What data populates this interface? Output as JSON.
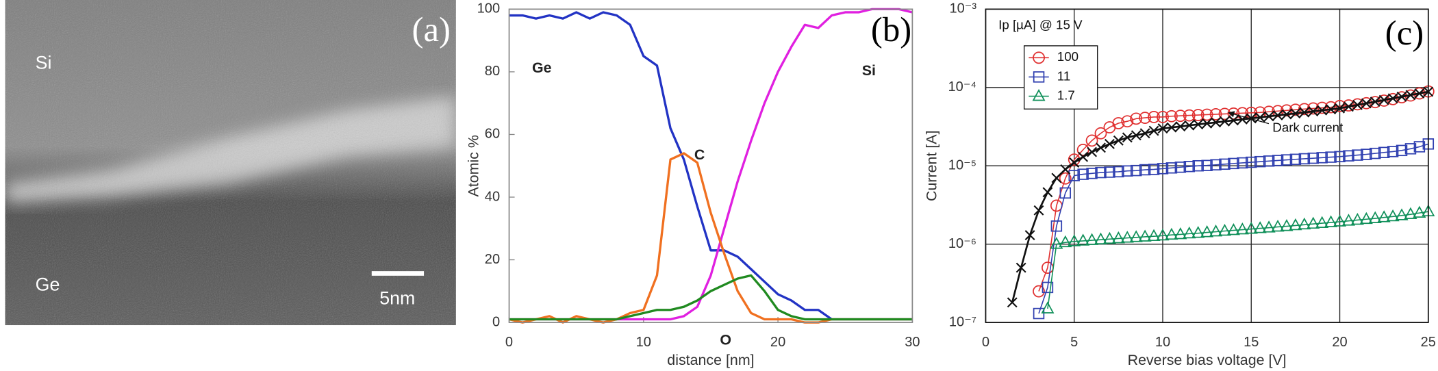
{
  "image_panel": {
    "panel_label": "(a)",
    "labels": [
      "Si",
      "Ge"
    ],
    "scale_bar": "5nm"
  },
  "chart_data": [
    {
      "type": "line",
      "panel_label": "(b)",
      "xlabel": "distance [nm]",
      "ylabel": "Atomic %",
      "xlim": [
        0,
        30
      ],
      "xticks": [
        0,
        10,
        20,
        30
      ],
      "ylim": [
        0,
        100
      ],
      "yticks": [
        0,
        20,
        40,
        60,
        80,
        100
      ],
      "grid": false,
      "legend": "inline",
      "x": [
        0,
        1,
        2,
        3,
        4,
        5,
        6,
        7,
        8,
        9,
        10,
        11,
        12,
        13,
        14,
        15,
        16,
        17,
        18,
        19,
        20,
        21,
        22,
        23,
        24,
        25,
        26,
        27,
        28,
        29,
        30
      ],
      "series": [
        {
          "name": "Ge",
          "color": "#2233c4",
          "values": [
            98,
            98,
            97,
            98,
            97,
            99,
            97,
            99,
            98,
            95,
            85,
            82,
            62,
            52,
            37,
            23,
            23,
            21,
            17,
            13,
            9,
            7,
            4,
            4,
            1,
            1,
            1,
            1,
            1,
            1,
            1
          ]
        },
        {
          "name": "Si",
          "color": "#e020e0",
          "values": [
            1,
            1,
            1,
            1,
            1,
            1,
            1,
            1,
            1,
            1,
            1,
            1,
            1,
            2,
            5,
            15,
            30,
            45,
            58,
            70,
            80,
            88,
            95,
            94,
            98,
            99,
            99,
            100,
            100,
            100,
            99
          ]
        },
        {
          "name": "C",
          "color": "#f07020",
          "values": [
            1,
            0,
            1,
            2,
            0,
            2,
            1,
            0,
            1,
            3,
            4,
            15,
            52,
            54,
            51,
            35,
            22,
            10,
            3,
            1,
            1,
            1,
            0,
            0,
            1,
            1,
            1,
            1,
            1,
            1,
            1
          ]
        },
        {
          "name": "O",
          "color": "#208a20",
          "values": [
            1,
            1,
            1,
            1,
            1,
            1,
            1,
            1,
            1,
            2,
            3,
            4,
            4,
            5,
            7,
            10,
            12,
            14,
            15,
            10,
            4,
            2,
            1,
            1,
            1,
            1,
            1,
            1,
            1,
            1,
            1
          ]
        }
      ]
    },
    {
      "type": "line",
      "panel_label": "(c)",
      "xlabel": "Reverse bias voltage [V]",
      "ylabel": "Current [A]",
      "xlim": [
        0,
        25
      ],
      "xticks": [
        0,
        5,
        10,
        15,
        20,
        25
      ],
      "log_y": true,
      "ylim": [
        1e-07,
        0.001
      ],
      "yticks": [
        {
          "value": 1e-07,
          "label": "10⁻⁷"
        },
        {
          "value": 1e-06,
          "label": "10⁻⁶"
        },
        {
          "value": 1e-05,
          "label": "10⁻⁵"
        },
        {
          "value": 0.0001,
          "label": "10⁻⁴"
        },
        {
          "value": 0.001,
          "label": "10⁻³"
        }
      ],
      "grid": true,
      "legend": "upper left",
      "legend_title": "Ip [µA] @ 15 V",
      "annotation": "Dark current",
      "series": [
        {
          "name": "100",
          "color": "#e03030",
          "marker": "circle",
          "x": [
            3,
            3.5,
            4,
            4.5,
            5,
            5.5,
            6,
            6.5,
            7,
            7.5,
            8,
            8.5,
            9,
            9.5,
            10,
            10.5,
            11,
            11.5,
            12,
            12.5,
            13,
            13.5,
            14,
            14.5,
            15,
            15.5,
            16,
            16.5,
            17,
            17.5,
            18,
            18.5,
            19,
            19.5,
            20,
            20.5,
            21,
            21.5,
            22,
            22.5,
            23,
            23.5,
            24,
            24.5,
            25
          ],
          "values": [
            2.5e-07,
            5e-07,
            3.1e-06,
            6.9e-06,
            1.2e-05,
            1.6e-05,
            2.1e-05,
            2.6e-05,
            3.1e-05,
            3.5e-05,
            3.7e-05,
            4e-05,
            4.1e-05,
            4.2e-05,
            4.2e-05,
            4.3e-05,
            4.35e-05,
            4.4e-05,
            4.45e-05,
            4.5e-05,
            4.55e-05,
            4.6e-05,
            4.65e-05,
            4.7e-05,
            4.75e-05,
            4.8e-05,
            4.9e-05,
            5e-05,
            5.1e-05,
            5.2e-05,
            5.3e-05,
            5.4e-05,
            5.5e-05,
            5.6e-05,
            5.8e-05,
            5.9e-05,
            6.1e-05,
            6.3e-05,
            6.5e-05,
            6.8e-05,
            7.1e-05,
            7.5e-05,
            7.9e-05,
            8.4e-05,
            8.9e-05
          ]
        },
        {
          "name": "11",
          "color": "#3040b0",
          "marker": "square",
          "x": [
            3,
            3.5,
            4,
            4.5,
            5,
            5.5,
            6,
            6.5,
            7,
            7.5,
            8,
            8.5,
            9,
            9.5,
            10,
            10.5,
            11,
            11.5,
            12,
            12.5,
            13,
            13.5,
            14,
            14.5,
            15,
            15.5,
            16,
            16.5,
            17,
            17.5,
            18,
            18.5,
            19,
            19.5,
            20,
            20.5,
            21,
            21.5,
            22,
            22.5,
            23,
            23.5,
            24,
            24.5,
            25
          ],
          "values": [
            1.3e-07,
            2.8e-07,
            1.7e-06,
            4.5e-06,
            7.5e-06,
            7.8e-06,
            8e-06,
            8.2e-06,
            8.3e-06,
            8.4e-06,
            8.6e-06,
            8.7e-06,
            8.9e-06,
            9e-06,
            9.2e-06,
            9.4e-06,
            9.6e-06,
            9.8e-06,
            1e-05,
            1.01e-05,
            1.03e-05,
            1.05e-05,
            1.07e-05,
            1.09e-05,
            1.11e-05,
            1.13e-05,
            1.15e-05,
            1.17e-05,
            1.19e-05,
            1.21e-05,
            1.23e-05,
            1.25e-05,
            1.27e-05,
            1.29e-05,
            1.31e-05,
            1.34e-05,
            1.37e-05,
            1.4e-05,
            1.44e-05,
            1.48e-05,
            1.52e-05,
            1.57e-05,
            1.65e-05,
            1.75e-05,
            1.9e-05
          ]
        },
        {
          "name": "1.7",
          "color": "#10905a",
          "marker": "triangle",
          "x": [
            3.5,
            4,
            4.5,
            5,
            5.5,
            6,
            6.5,
            7,
            7.5,
            8,
            8.5,
            9,
            9.5,
            10,
            10.5,
            11,
            11.5,
            12,
            12.5,
            13,
            13.5,
            14,
            14.5,
            15,
            15.5,
            16,
            16.5,
            17,
            17.5,
            18,
            18.5,
            19,
            19.5,
            20,
            20.5,
            21,
            21.5,
            22,
            22.5,
            23,
            23.5,
            24,
            24.5,
            25
          ],
          "values": [
            1.5e-07,
            1e-06,
            1.05e-06,
            1.08e-06,
            1.1e-06,
            1.12e-06,
            1.14e-06,
            1.16e-06,
            1.18e-06,
            1.2e-06,
            1.22e-06,
            1.24e-06,
            1.26e-06,
            1.28e-06,
            1.31e-06,
            1.33e-06,
            1.36e-06,
            1.38e-06,
            1.41e-06,
            1.44e-06,
            1.47e-06,
            1.5e-06,
            1.53e-06,
            1.56e-06,
            1.59e-06,
            1.62e-06,
            1.66e-06,
            1.69e-06,
            1.73e-06,
            1.77e-06,
            1.81e-06,
            1.85e-06,
            1.89e-06,
            1.93e-06,
            1.98e-06,
            2.03e-06,
            2.08e-06,
            2.13e-06,
            2.19e-06,
            2.25e-06,
            2.32e-06,
            2.4e-06,
            2.5e-06,
            2.6e-06
          ]
        },
        {
          "color": "#111111",
          "marker": "x",
          "x": [
            1.5,
            2,
            2.5,
            3,
            3.5,
            4,
            4.5,
            5,
            5.5,
            6,
            6.5,
            7,
            7.5,
            8,
            8.5,
            9,
            9.5,
            10,
            10.5,
            11,
            11.5,
            12,
            12.5,
            13,
            13.5,
            14,
            14.5,
            15,
            15.5,
            16,
            16.5,
            17,
            17.5,
            18,
            18.5,
            19,
            19.5,
            20,
            20.5,
            21,
            21.5,
            22,
            22.5,
            23,
            23.5,
            24,
            24.5,
            25
          ],
          "values": [
            1.8e-07,
            5e-07,
            1.3e-06,
            2.7e-06,
            4.6e-06,
            7e-06,
            9e-06,
            1.1e-05,
            1.3e-05,
            1.5e-05,
            1.7e-05,
            1.9e-05,
            2.1e-05,
            2.3e-05,
            2.45e-05,
            2.6e-05,
            2.8e-05,
            3e-05,
            3.09e-05,
            3.18e-05,
            3.28e-05,
            3.38e-05,
            3.48e-05,
            3.58e-05,
            3.69e-05,
            3.8e-05,
            3.91e-05,
            4.03e-05,
            4.15e-05,
            4.28e-05,
            4.41e-05,
            4.54e-05,
            4.67e-05,
            4.81e-05,
            4.96e-05,
            5.11e-05,
            5.26e-05,
            5.42e-05,
            5.69e-05,
            5.98e-05,
            6.28e-05,
            6.59e-05,
            6.92e-05,
            7.27e-05,
            7.63e-05,
            8.01e-05,
            8.41e-05,
            8.83e-05
          ]
        }
      ]
    }
  ]
}
